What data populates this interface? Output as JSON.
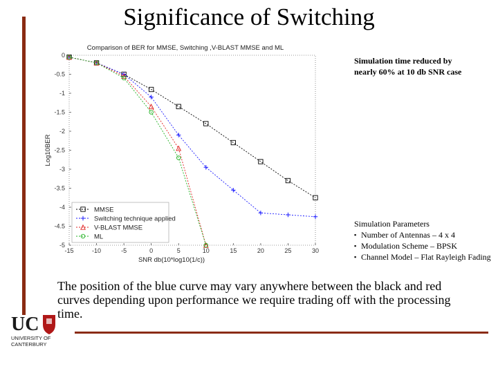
{
  "slide": {
    "title": "Significance of Switching",
    "sim_note": "Simulation time reduced by nearly 60% at 10 db SNR case",
    "params_title": "Simulation Parameters",
    "params": [
      "Number of Antennas – 4 x 4",
      "Modulation Scheme – BPSK",
      "Channel Model – Flat Rayleigh Fading"
    ],
    "caption": "The position of the blue curve may vary anywhere between the black and red curves depending upon performance we require trading off with the processing time.",
    "logo": {
      "text": "UC",
      "line1": "UNIVERSITY OF",
      "line2": "CANTERBURY"
    }
  },
  "colors": {
    "accent": "#8a2b12",
    "mmse": "#000000",
    "switch": "#1a1aff",
    "vblast": "#e02020",
    "ml": "#20b020"
  },
  "chart_data": {
    "type": "line",
    "title": "Comparison of BER for MMSE, Switching ,V-BLAST MMSE and ML",
    "xlabel": "SNR db(10*log10(1/c))",
    "ylabel": "Log10BER",
    "xlim": [
      -15,
      30
    ],
    "ylim": [
      -5,
      0
    ],
    "xticks": [
      -15,
      -10,
      -5,
      0,
      5,
      10,
      15,
      20,
      25,
      30
    ],
    "yticks": [
      0,
      -0.5,
      -1,
      -1.5,
      -2,
      -2.5,
      -3,
      -3.5,
      -4,
      -4.5,
      -5
    ],
    "grid": false,
    "legend_position": "bottom-left",
    "series": [
      {
        "name": "MMSE",
        "marker": "square",
        "color": "#000000",
        "x": [
          -15,
          -10,
          -5,
          0,
          5,
          10,
          15,
          20,
          25,
          30
        ],
        "y": [
          -0.05,
          -0.2,
          -0.5,
          -0.9,
          -1.35,
          -1.8,
          -2.3,
          -2.8,
          -3.3,
          -3.75
        ]
      },
      {
        "name": "Switching technique applied",
        "marker": "plus",
        "color": "#1a1aff",
        "x": [
          -15,
          -10,
          -5,
          0,
          5,
          10,
          15,
          20,
          25,
          30
        ],
        "y": [
          -0.05,
          -0.2,
          -0.5,
          -1.1,
          -2.1,
          -2.95,
          -3.55,
          -4.15,
          -4.2,
          -4.25
        ]
      },
      {
        "name": "V-BLAST MMSE",
        "marker": "triangle",
        "color": "#e02020",
        "x": [
          -15,
          -10,
          -5,
          0,
          5,
          10
        ],
        "y": [
          -0.05,
          -0.2,
          -0.55,
          -1.35,
          -2.45,
          -5
        ]
      },
      {
        "name": "ML",
        "marker": "circle",
        "color": "#20b020",
        "x": [
          -15,
          -10,
          -5,
          0,
          5,
          10
        ],
        "y": [
          -0.05,
          -0.2,
          -0.6,
          -1.5,
          -2.7,
          -5
        ]
      }
    ]
  }
}
